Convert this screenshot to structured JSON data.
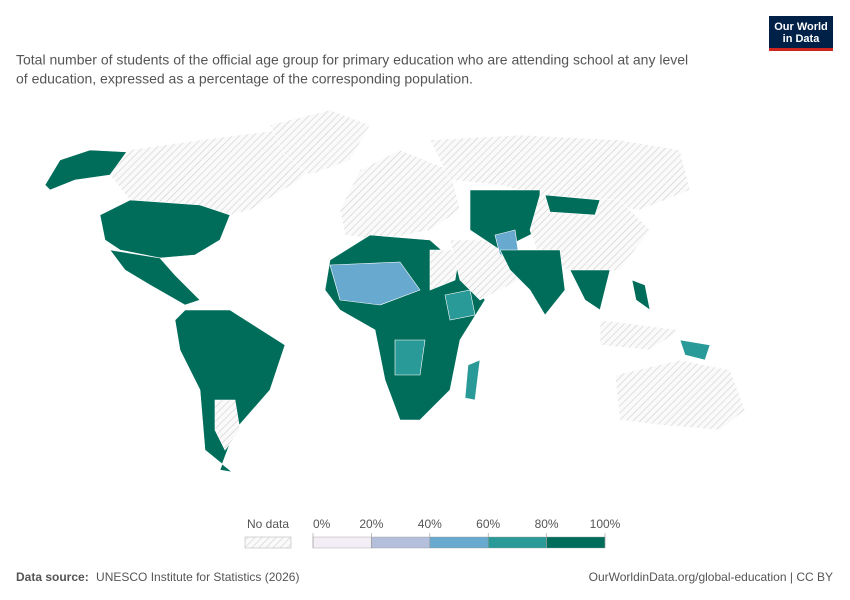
{
  "header": {
    "logo": "Our World in Data",
    "subtitle_lines": [
      "Total number of students of the official age group for primary education who are attending school at any level",
      "of education, expressed as a percentage of the corresponding population."
    ]
  },
  "legend": {
    "no_data": "No data",
    "ticks": [
      {
        "value": 0,
        "label": "0%"
      },
      {
        "value": 20,
        "label": "20%"
      },
      {
        "value": 40,
        "label": "40%"
      },
      {
        "value": 60,
        "label": "60%"
      },
      {
        "value": 80,
        "label": "80%"
      },
      {
        "value": 100,
        "label": "100%"
      }
    ],
    "colors": [
      "#f3eef6",
      "#b4bfdb",
      "#67a9cf",
      "#2a9a98",
      "#006d5b"
    ]
  },
  "footer": {
    "source_label": "Data source:",
    "source": "UNESCO Institute for Statistics (2026)",
    "link": "OurWorldinData.org/global-education | CC BY"
  }
}
